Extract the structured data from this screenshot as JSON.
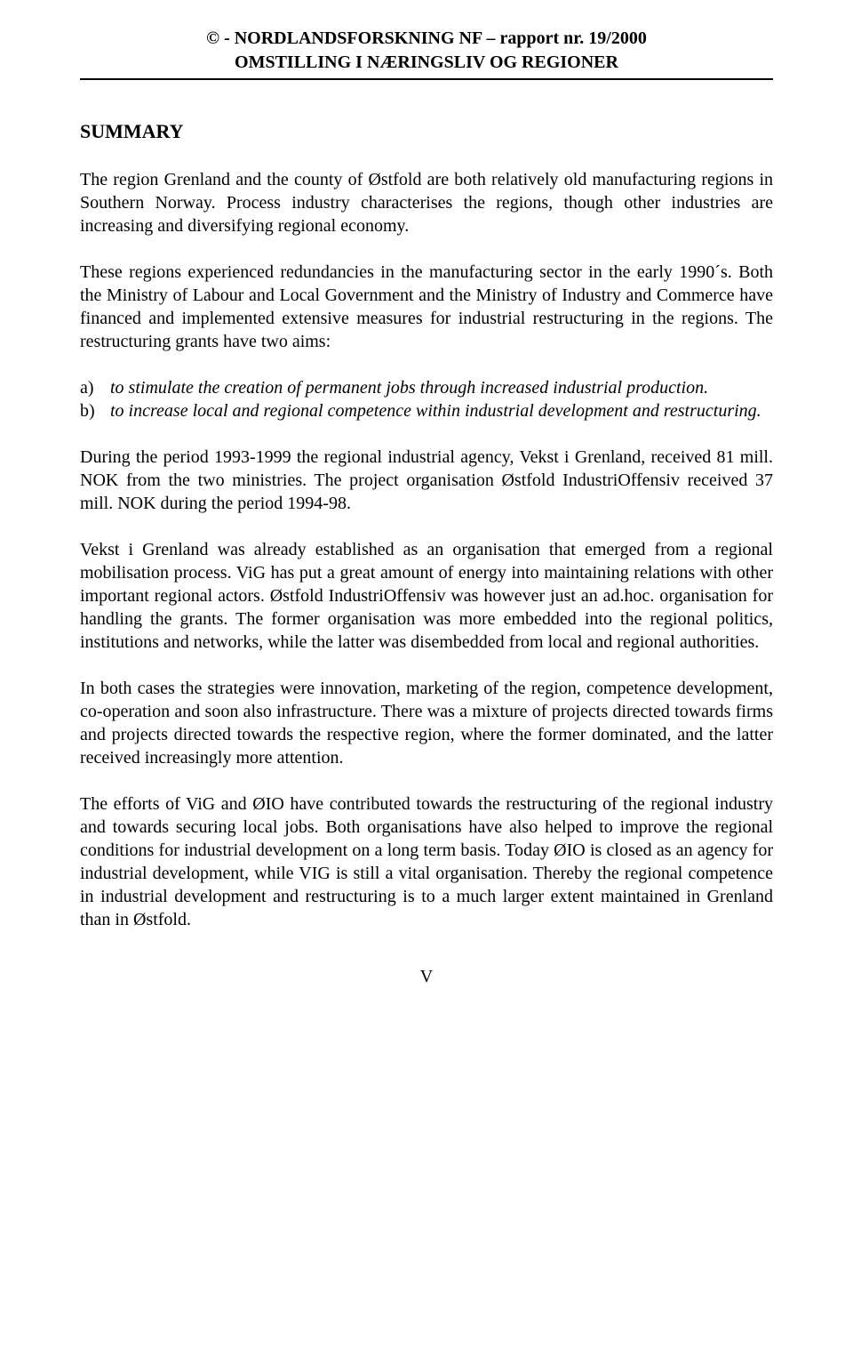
{
  "header": {
    "line1": "© - NORDLANDSFORSKNING NF – rapport nr. 19/2000",
    "line2": "OMSTILLING I NÆRINGSLIV OG REGIONER"
  },
  "section_title": "SUMMARY",
  "paragraphs": {
    "p1": "The region Grenland and the county of Østfold are both relatively old manufacturing regions in Southern Norway. Process industry characterises the regions, though other industries are increasing and diversifying regional economy.",
    "p2": "These regions experienced redundancies in the manufacturing sector in the early 1990´s. Both the Ministry of Labour and Local Government and the Ministry of Industry and Commerce have financed and implemented extensive measures for industrial restructuring in the regions. The restructuring grants have two aims:",
    "list": {
      "a_marker": "a)",
      "a_text": "to stimulate the creation of permanent jobs through increased industrial production.",
      "b_marker": "b)",
      "b_text": "to increase local and regional competence within industrial development and restructuring."
    },
    "p3": "During the period 1993-1999 the regional industrial agency, Vekst i Grenland, received 81 mill. NOK from the two ministries. The project organisation Østfold IndustriOffensiv received 37 mill. NOK during the period 1994-98.",
    "p4": "Vekst i Grenland was already established as an organisation that emerged from a regional mobilisation process. ViG has put a great amount of energy into maintaining relations with other important regional actors. Østfold IndustriOffensiv was however just an ad.hoc. organisation for handling the grants. The former organisation was more embedded into the regional politics, institutions and networks, while the latter was disembedded from local and regional authorities.",
    "p5": "In both cases the strategies were innovation, marketing of the region, competence development, co-operation and soon also infrastructure. There was a mixture of projects directed towards firms and projects directed towards the respective region, where the former dominated, and the latter received increasingly more attention.",
    "p6": "The efforts of ViG and ØIO have contributed towards the restructuring of the regional industry and towards securing local jobs. Both organisations have also helped to improve the regional conditions for industrial development on a long term basis. Today ØIO is closed as an agency for industrial development, while VIG is still a vital organisation. Thereby the regional competence in industrial development and restructuring is to a much larger extent maintained in Grenland than in Østfold."
  },
  "page_number": "V"
}
